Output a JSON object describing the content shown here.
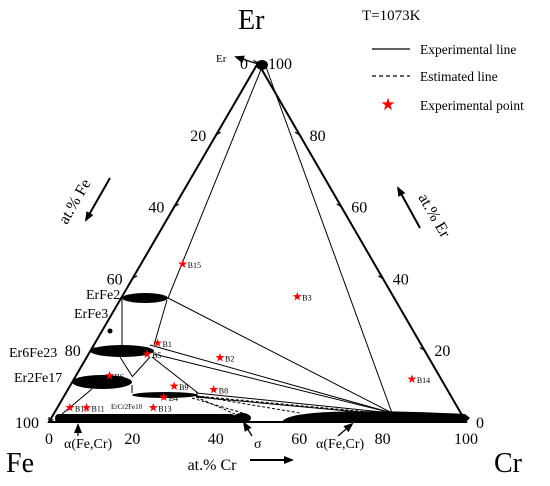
{
  "title": "T=1073K",
  "corners": {
    "top": "Er",
    "left": "Fe",
    "right": "Cr"
  },
  "axis_titles": {
    "left": "at.% Fe",
    "right": "at.% Er",
    "bottom": "at.% Cr"
  },
  "ticks": {
    "bottom": [
      "0",
      "20",
      "40",
      "60",
      "80",
      "100"
    ],
    "left": [
      "0",
      "20",
      "40",
      "60",
      "80",
      "100"
    ],
    "right": [
      "0",
      "20",
      "40",
      "60",
      "80",
      "100"
    ]
  },
  "legend": {
    "experimental_line": "Experimental line",
    "estimated_line": "Estimated line",
    "experimental_point": "Experimental point"
  },
  "colors": {
    "point": "#ff0000",
    "line": "#000000",
    "background": "#ffffff"
  },
  "phases": {
    "er": "Er",
    "erfe2": "ErFe2",
    "erfe3": "ErFe3",
    "er6fe23": "Er6Fe23",
    "er2fe17": "Er2Fe17",
    "ercr2fe10": "ErCr2Fe10",
    "alpha_left": "α(Fe,Cr)",
    "sigma": "σ",
    "alpha_right": "α(Fe,Cr)"
  },
  "points": [
    {
      "label": "B1",
      "cr": 15,
      "er": 22
    },
    {
      "label": "B2",
      "cr": 32,
      "er": 18
    },
    {
      "label": "B3",
      "cr": 42,
      "er": 35
    },
    {
      "label": "B4",
      "cr": 24,
      "er": 7
    },
    {
      "label": "B5",
      "cr": 14,
      "er": 19
    },
    {
      "label": "B6",
      "cr": 8,
      "er": 13
    },
    {
      "label": "B8",
      "cr": 35,
      "er": 9
    },
    {
      "label": "B9",
      "cr": 25,
      "er": 10
    },
    {
      "label": "B10",
      "cr": 3,
      "er": 4
    },
    {
      "label": "B11",
      "cr": 7,
      "er": 4
    },
    {
      "label": "B13",
      "cr": 23,
      "er": 4
    },
    {
      "label": "B14",
      "cr": 81,
      "er": 12
    },
    {
      "label": "B15",
      "cr": 10,
      "er": 44
    }
  ]
}
